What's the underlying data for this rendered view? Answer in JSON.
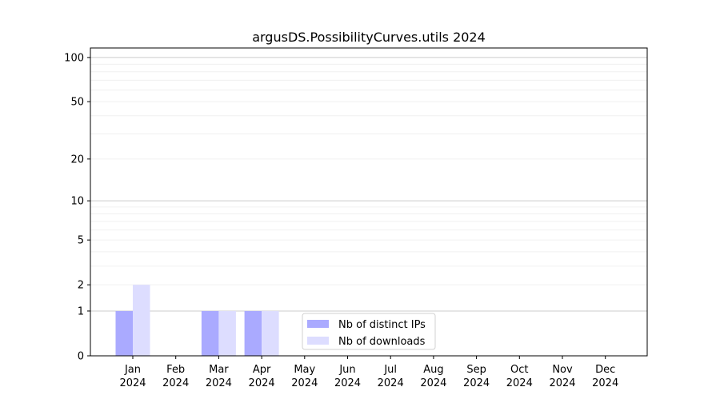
{
  "chart_data": {
    "type": "bar",
    "title": "argusDS.PossibilityCurves.utils 2024",
    "xlabel": "",
    "ylabel": "",
    "yscale": "log10(1+y)",
    "ylim": [
      0,
      116
    ],
    "yticks": [
      0,
      1,
      2,
      5,
      10,
      20,
      50,
      100
    ],
    "grid": true,
    "legend_position": "lower-center",
    "categories": [
      [
        "Jan",
        "2024"
      ],
      [
        "Feb",
        "2024"
      ],
      [
        "Mar",
        "2024"
      ],
      [
        "Apr",
        "2024"
      ],
      [
        "May",
        "2024"
      ],
      [
        "Jun",
        "2024"
      ],
      [
        "Jul",
        "2024"
      ],
      [
        "Aug",
        "2024"
      ],
      [
        "Sep",
        "2024"
      ],
      [
        "Oct",
        "2024"
      ],
      [
        "Nov",
        "2024"
      ],
      [
        "Dec",
        "2024"
      ]
    ],
    "series": [
      {
        "name": "Nb of distinct IPs",
        "color": "#aaaaff",
        "values": [
          1,
          0,
          1,
          1,
          0,
          0,
          0,
          0,
          0,
          0,
          0,
          0
        ]
      },
      {
        "name": "Nb of downloads",
        "color": "#ddddff",
        "values": [
          2,
          0,
          1,
          1,
          0,
          0,
          0,
          0,
          0,
          0,
          0,
          0
        ]
      }
    ]
  }
}
